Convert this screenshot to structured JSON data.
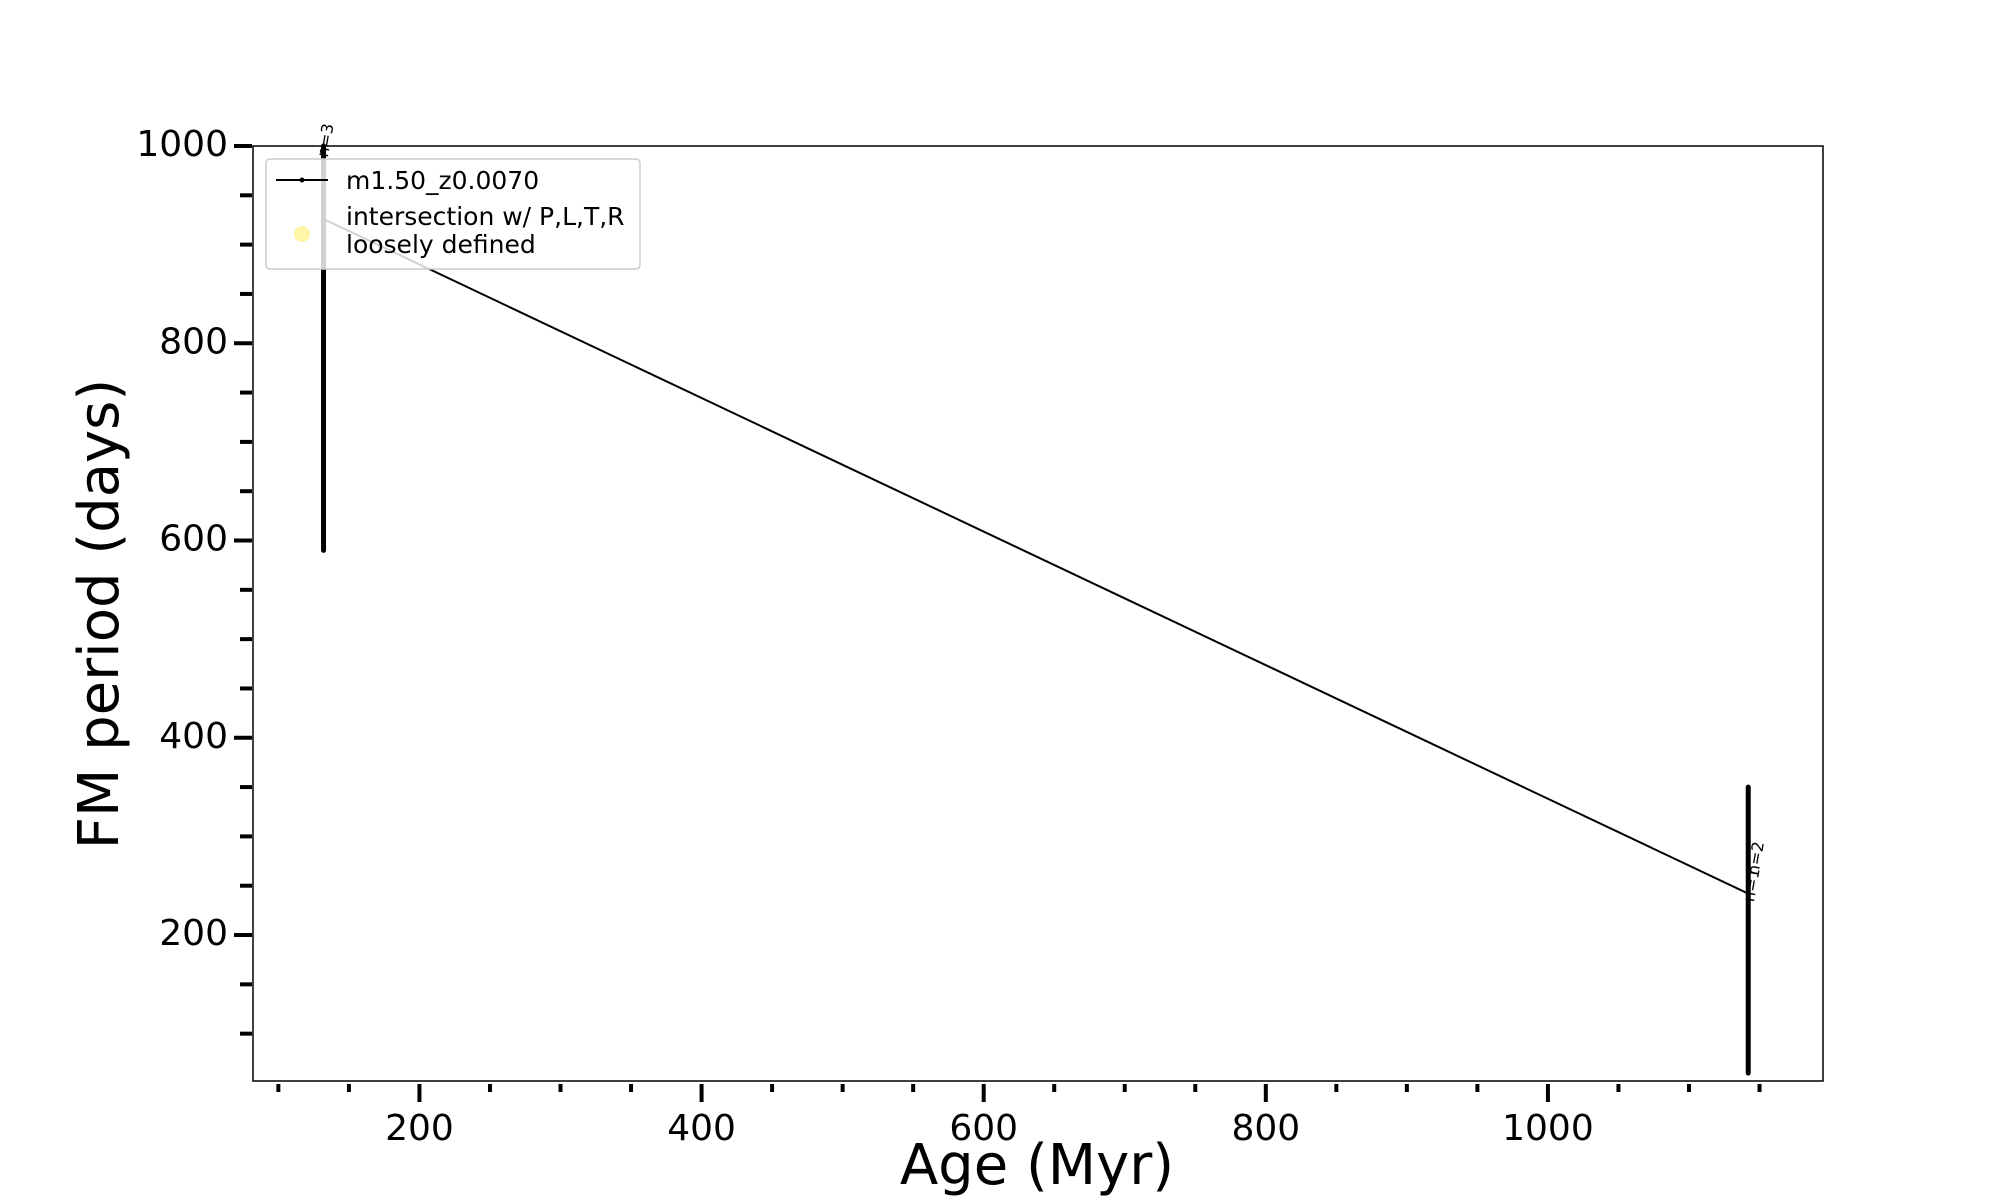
{
  "chart_data": {
    "type": "line",
    "xlabel": "Age (Myr)",
    "ylabel": "FM period (days)",
    "xlim": [
      82,
      1195
    ],
    "ylim": [
      52,
      1000
    ],
    "xticks": [
      200,
      400,
      600,
      800,
      1000
    ],
    "xminor_step": 50,
    "yticks": [
      200,
      400,
      600,
      800,
      1000
    ],
    "yminor_step": 50,
    "legend_position": "upper-left",
    "series": [
      {
        "name": "m1.50_z0.0070",
        "style": "line-with-dot-markers",
        "color": "#000000",
        "points": [
          [
            132,
            926
          ],
          [
            1142,
            242
          ]
        ]
      },
      {
        "name": "intersection w/ P,L,T,R\nloosely defined",
        "style": "marker",
        "color": "#fff6a8",
        "points": []
      }
    ],
    "vertical_tracks": [
      {
        "x": 132,
        "y_from": 590,
        "y_to": 1000
      },
      {
        "x": 1142,
        "y_from": 60,
        "y_to": 350
      }
    ],
    "annotations": [
      {
        "text": "n=3",
        "x": 135,
        "y": 988
      },
      {
        "text": "n=1",
        "x": 1146,
        "y": 233
      },
      {
        "text": "n=2",
        "x": 1149,
        "y": 260
      }
    ]
  }
}
